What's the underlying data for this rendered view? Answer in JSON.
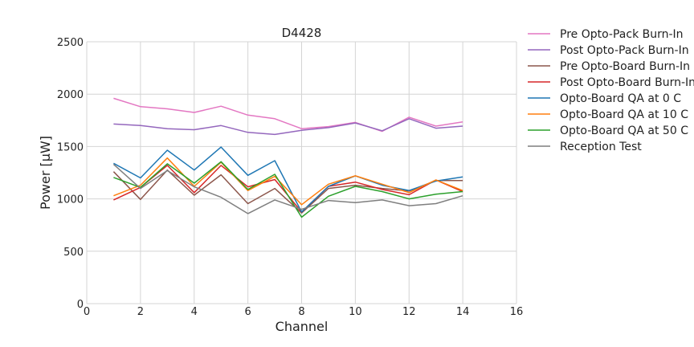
{
  "chart_data": {
    "type": "line",
    "title": "D4428",
    "xlabel": "Channel",
    "ylabel": "Power [μW]",
    "xlim": [
      0,
      16
    ],
    "ylim": [
      0,
      2500
    ],
    "xticks": [
      "0",
      "2",
      "4",
      "6",
      "8",
      "10",
      "12",
      "14",
      "16"
    ],
    "yticks": [
      "0",
      "500",
      "1000",
      "1500",
      "2000",
      "2500"
    ],
    "grid": true,
    "legend_position": "outside-right",
    "x": [
      1,
      2,
      3,
      4,
      5,
      6,
      7,
      8,
      9,
      10,
      11,
      12,
      13,
      14
    ],
    "series": [
      {
        "name": "Pre Opto-Pack Burn-In",
        "color": "#e377c2",
        "values": [
          1960,
          1880,
          1860,
          1825,
          1885,
          1800,
          1765,
          1670,
          1690,
          1730,
          1645,
          1780,
          1695,
          1735
        ]
      },
      {
        "name": "Post Opto-Pack Burn-In",
        "color": "#9467bd",
        "values": [
          1715,
          1700,
          1670,
          1660,
          1700,
          1635,
          1615,
          1655,
          1680,
          1725,
          1650,
          1765,
          1675,
          1695
        ]
      },
      {
        "name": "Pre Opto-Board Burn-In",
        "color": "#8c564b",
        "values": [
          1260,
          995,
          1275,
          1035,
          1230,
          955,
          1100,
          865,
          1100,
          1130,
          1100,
          1075,
          1175,
          1175
        ]
      },
      {
        "name": "Post Opto-Board Burn-In",
        "color": "#d62728",
        "values": [
          990,
          1110,
          1320,
          1060,
          1320,
          1115,
          1185,
          875,
          1120,
          1160,
          1090,
          1040,
          1180,
          1070
        ]
      },
      {
        "name": "Opto-Board QA at 0 C",
        "color": "#1f77b4",
        "values": [
          1340,
          1200,
          1465,
          1275,
          1495,
          1225,
          1365,
          875,
          1120,
          1220,
          1130,
          1080,
          1170,
          1210
        ]
      },
      {
        "name": "Opto-Board QA at 10 C",
        "color": "#ff7f0e",
        "values": [
          1030,
          1130,
          1390,
          1120,
          1350,
          1080,
          1215,
          945,
          1140,
          1220,
          1140,
          1060,
          1180,
          1080
        ]
      },
      {
        "name": "Opto-Board QA at 50 C",
        "color": "#2ca02c",
        "values": [
          1205,
          1110,
          1335,
          1150,
          1355,
          1090,
          1235,
          825,
          1025,
          1120,
          1070,
          1000,
          1045,
          1070
        ]
      },
      {
        "name": "Reception Test",
        "color": "#7f7f7f",
        "values": [
          1330,
          1100,
          1270,
          1115,
          1015,
          860,
          990,
          900,
          985,
          965,
          990,
          935,
          955,
          1030
        ]
      }
    ]
  }
}
